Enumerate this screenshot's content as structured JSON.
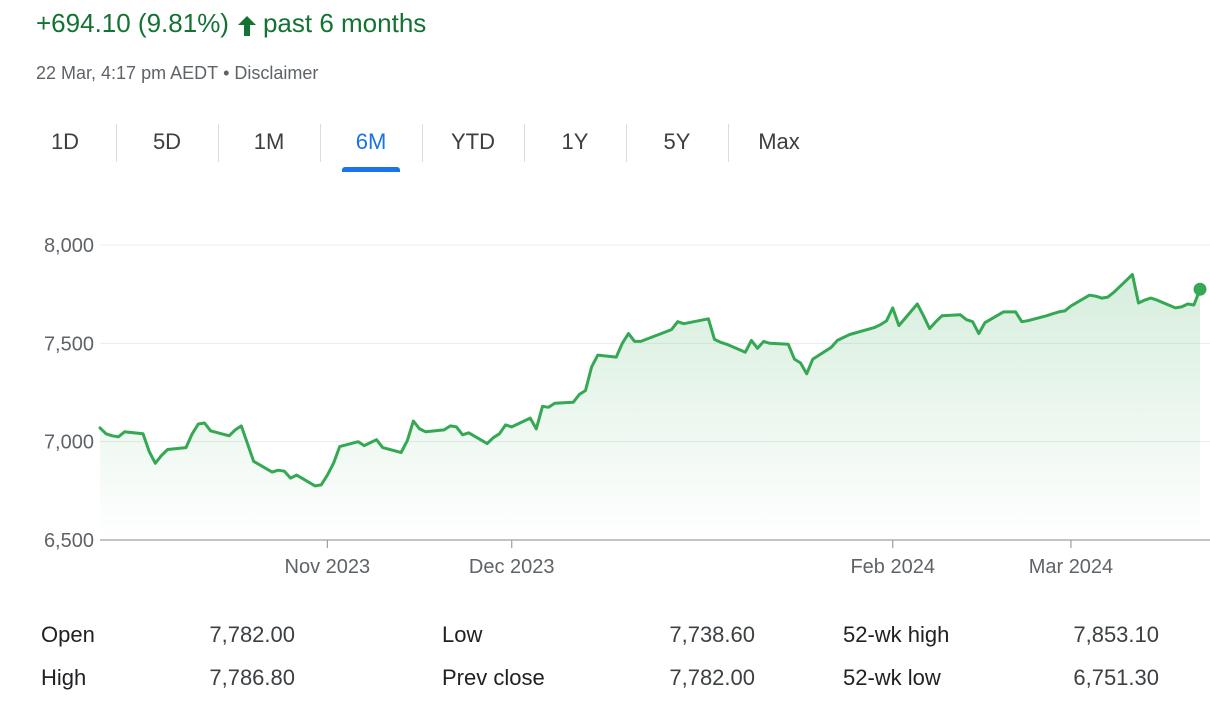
{
  "header": {
    "change_text": "+694.10 (9.81%)",
    "period_text": "past 6 months",
    "arrow_icon": "arrow-up-icon",
    "change_color": "#137333"
  },
  "timestamp": {
    "time_text": "22 Mar, 4:17 pm AEDT",
    "separator": "•",
    "disclaimer": "Disclaimer"
  },
  "range_tabs": {
    "items": [
      "1D",
      "5D",
      "1M",
      "6M",
      "YTD",
      "1Y",
      "5Y",
      "Max"
    ],
    "active": "6M",
    "accent_color": "#1a73e8"
  },
  "chart_data": {
    "type": "area",
    "title": "",
    "xlabel": "",
    "ylabel": "",
    "ylim": [
      6500,
      8000
    ],
    "xlim": [
      "2023-09-25",
      "2024-03-22"
    ],
    "yticks": [
      8000,
      7500,
      7000,
      6500
    ],
    "ytick_labels": [
      "8,000",
      "7,500",
      "7,000",
      "6,500"
    ],
    "xticks": [
      {
        "date": "2023-11-01",
        "label": "Nov 2023"
      },
      {
        "date": "2023-12-01",
        "label": "Dec 2023"
      },
      {
        "date": "2024-02-01",
        "label": "Feb 2024"
      },
      {
        "date": "2024-03-01",
        "label": "Mar 2024"
      }
    ],
    "grid": true,
    "line_color": "#34a853",
    "series": [
      {
        "x": [
          "2023-09-25",
          "2023-09-26",
          "2023-09-27",
          "2023-09-28",
          "2023-09-29",
          "2023-10-02",
          "2023-10-03",
          "2023-10-04",
          "2023-10-05",
          "2023-10-06",
          "2023-10-09",
          "2023-10-10",
          "2023-10-11",
          "2023-10-12",
          "2023-10-13",
          "2023-10-16",
          "2023-10-17",
          "2023-10-18",
          "2023-10-19",
          "2023-10-20",
          "2023-10-23",
          "2023-10-24",
          "2023-10-25",
          "2023-10-26",
          "2023-10-27",
          "2023-10-30",
          "2023-10-31",
          "2023-11-01",
          "2023-11-02",
          "2023-11-03",
          "2023-11-06",
          "2023-11-07",
          "2023-11-08",
          "2023-11-09",
          "2023-11-10",
          "2023-11-13",
          "2023-11-14",
          "2023-11-15",
          "2023-11-16",
          "2023-11-17",
          "2023-11-20",
          "2023-11-21",
          "2023-11-22",
          "2023-11-23",
          "2023-11-24",
          "2023-11-27",
          "2023-11-28",
          "2023-11-29",
          "2023-11-30",
          "2023-12-01",
          "2023-12-04",
          "2023-12-05",
          "2023-12-06",
          "2023-12-07",
          "2023-12-08",
          "2023-12-11",
          "2023-12-12",
          "2023-12-13",
          "2023-12-14",
          "2023-12-15",
          "2023-12-18",
          "2023-12-19",
          "2023-12-20",
          "2023-12-21",
          "2023-12-22",
          "2023-12-27",
          "2023-12-28",
          "2023-12-29",
          "2024-01-02",
          "2024-01-03",
          "2024-01-04",
          "2024-01-05",
          "2024-01-08",
          "2024-01-09",
          "2024-01-10",
          "2024-01-11",
          "2024-01-12",
          "2024-01-15",
          "2024-01-16",
          "2024-01-17",
          "2024-01-18",
          "2024-01-19",
          "2024-01-22",
          "2024-01-23",
          "2024-01-24",
          "2024-01-25",
          "2024-01-29",
          "2024-01-30",
          "2024-01-31",
          "2024-02-01",
          "2024-02-02",
          "2024-02-05",
          "2024-02-06",
          "2024-02-07",
          "2024-02-08",
          "2024-02-09",
          "2024-02-12",
          "2024-02-13",
          "2024-02-14",
          "2024-02-15",
          "2024-02-16",
          "2024-02-19",
          "2024-02-20",
          "2024-02-21",
          "2024-02-22",
          "2024-02-23",
          "2024-02-26",
          "2024-02-27",
          "2024-02-28",
          "2024-02-29",
          "2024-03-01",
          "2024-03-04",
          "2024-03-05",
          "2024-03-06",
          "2024-03-07",
          "2024-03-08",
          "2024-03-11",
          "2024-03-12",
          "2024-03-13",
          "2024-03-14",
          "2024-03-15",
          "2024-03-18",
          "2024-03-19",
          "2024-03-20",
          "2024-03-21",
          "2024-03-22"
        ],
        "y": [
          7070,
          7040,
          7030,
          7025,
          7050,
          7040,
          6950,
          6890,
          6930,
          6960,
          6970,
          7040,
          7090,
          7095,
          7055,
          7030,
          7060,
          7080,
          6990,
          6900,
          6845,
          6855,
          6850,
          6815,
          6830,
          6775,
          6780,
          6830,
          6890,
          6975,
          7000,
          6980,
          6995,
          7010,
          6970,
          6945,
          7005,
          7105,
          7065,
          7050,
          7060,
          7080,
          7075,
          7035,
          7045,
          6990,
          7020,
          7040,
          7085,
          7075,
          7120,
          7065,
          7180,
          7175,
          7195,
          7200,
          7240,
          7260,
          7380,
          7440,
          7430,
          7500,
          7550,
          7510,
          7510,
          7570,
          7610,
          7600,
          7625,
          7520,
          7505,
          7495,
          7455,
          7515,
          7475,
          7510,
          7500,
          7495,
          7420,
          7400,
          7345,
          7420,
          7480,
          7515,
          7530,
          7545,
          7580,
          7595,
          7615,
          7680,
          7590,
          7700,
          7640,
          7575,
          7610,
          7640,
          7645,
          7620,
          7610,
          7550,
          7605,
          7660,
          7660,
          7660,
          7610,
          7615,
          7640,
          7650,
          7660,
          7665,
          7690,
          7745,
          7740,
          7730,
          7735,
          7760,
          7850,
          7705,
          7720,
          7730,
          7720,
          7680,
          7685,
          7700,
          7695,
          7775
        ]
      }
    ],
    "last_value": 7775
  },
  "stats": {
    "items": [
      {
        "label": "Open",
        "value": "7,782.00"
      },
      {
        "label": "High",
        "value": "7,786.80"
      },
      {
        "label": "Low",
        "value": "7,738.60"
      },
      {
        "label": "Prev close",
        "value": "7,782.00"
      },
      {
        "label": "52-wk high",
        "value": "7,853.10"
      },
      {
        "label": "52-wk low",
        "value": "6,751.30"
      }
    ]
  }
}
